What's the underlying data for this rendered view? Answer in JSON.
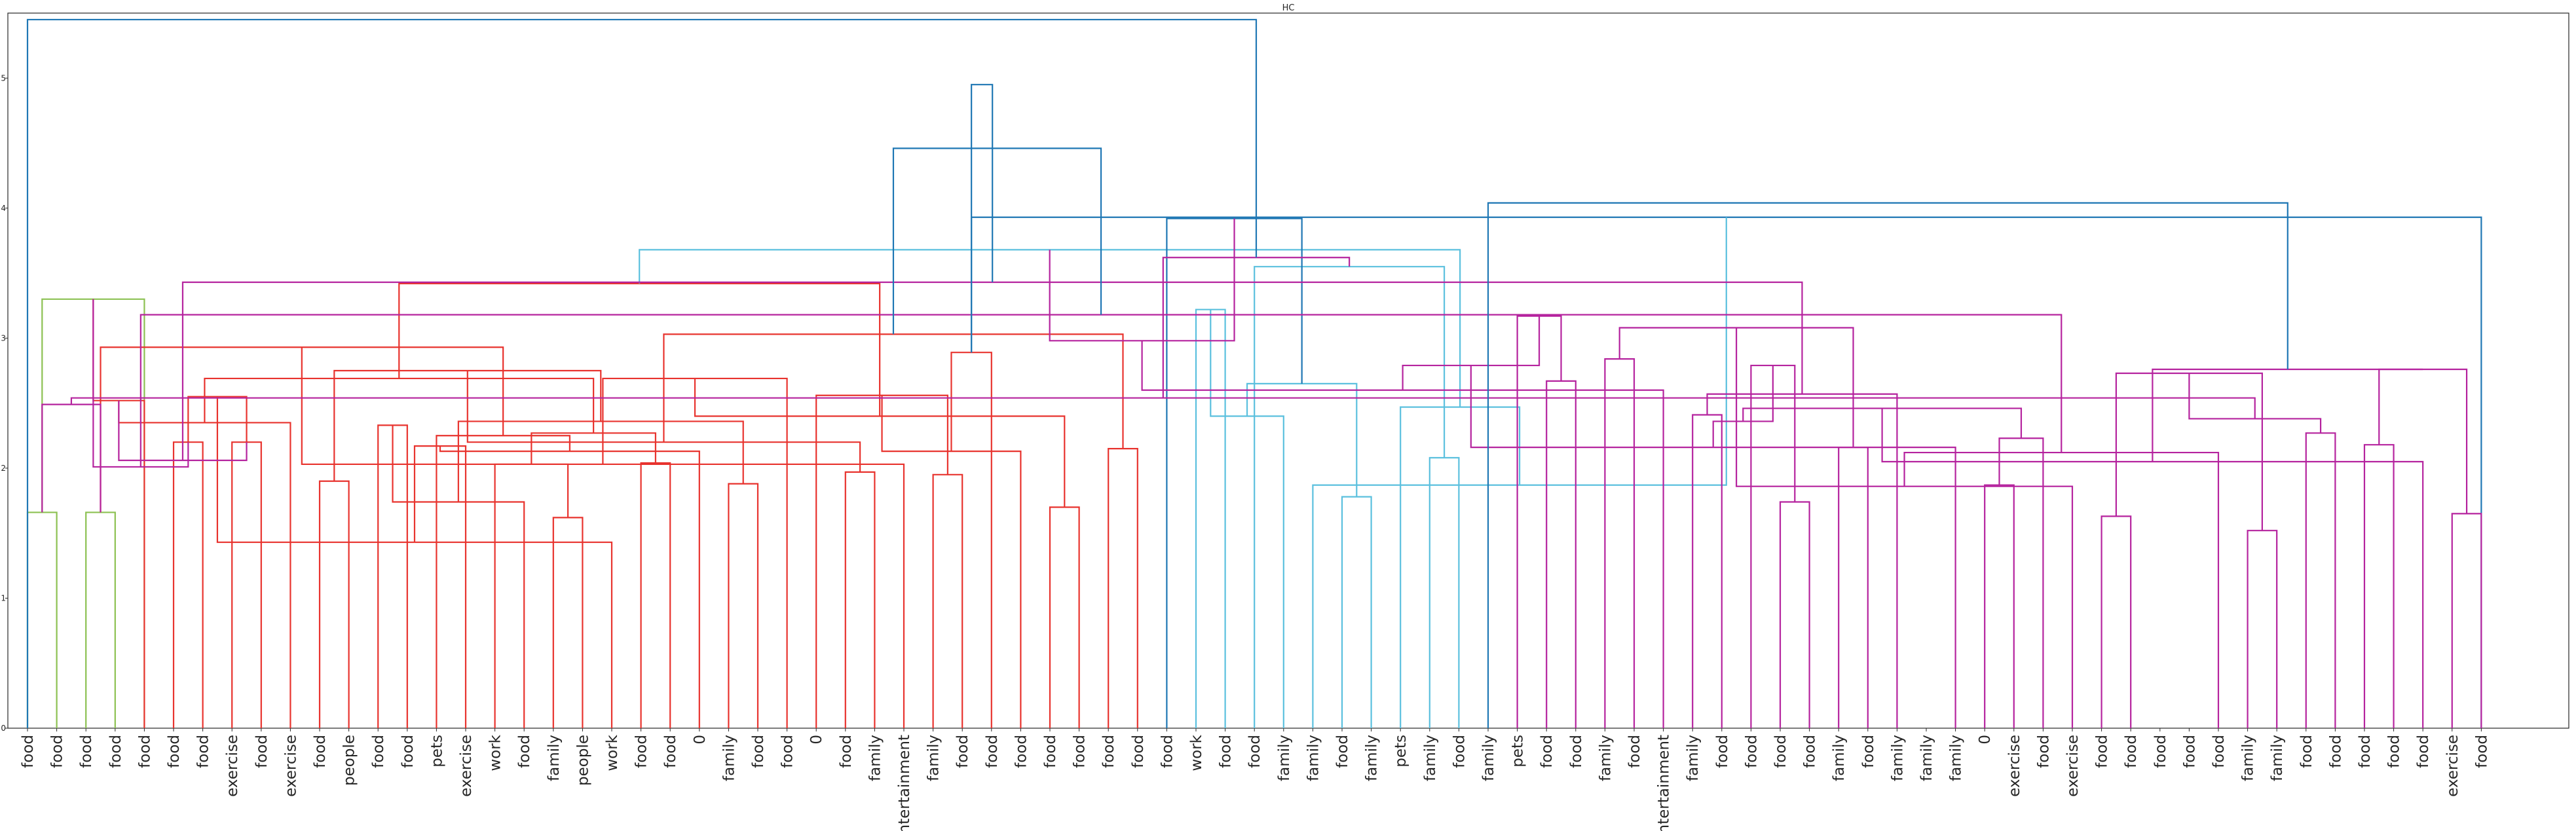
{
  "chart_data": {
    "type": "dendrogram",
    "title": "HC",
    "xlabel": "",
    "ylabel": "",
    "ylim": [
      0,
      5.5
    ],
    "yticks": [
      "0",
      "1",
      "2",
      "3",
      "4",
      "5"
    ],
    "grid": false,
    "leaf_labels": [
      "food",
      "food",
      "food",
      "food",
      "food",
      "food",
      "food",
      "exercise",
      "food",
      "exercise",
      "food",
      "people",
      "food",
      "food",
      "pets",
      "exercise",
      "work",
      "food",
      "family",
      "people",
      "work",
      "food",
      "food",
      "0",
      "family",
      "food",
      "food",
      "0",
      "food",
      "family",
      "entertainment",
      "family",
      "food",
      "food",
      "food",
      "food",
      "food",
      "food",
      "food",
      "food",
      "work",
      "food",
      "food",
      "family",
      "family",
      "food",
      "family",
      "pets",
      "family",
      "food",
      "family",
      "pets",
      "food",
      "food",
      "family",
      "food",
      "entertainment",
      "family",
      "food",
      "food",
      "food",
      "food",
      "family",
      "food",
      "family",
      "family",
      "family",
      "0",
      "exercise",
      "food",
      "exercise",
      "food",
      "food",
      "food",
      "food",
      "food",
      "family",
      "family",
      "food",
      "food",
      "food",
      "food",
      "food",
      "exercise",
      "food"
    ],
    "cluster_colors": {
      "above": "#1f77b4",
      "green": "#8cc152",
      "red": "#e8332e",
      "cyan": "#5bc0de",
      "magenta": "#b5239e"
    },
    "links": [
      [
        0,
        1,
        1.66,
        "green"
      ],
      [
        2,
        3,
        1.66,
        "green"
      ],
      [
        85,
        4,
        3.3,
        "green"
      ],
      [
        5,
        6,
        2.2,
        "red"
      ],
      [
        4,
        87,
        2.52,
        "red"
      ],
      [
        7,
        8,
        2.2,
        "red"
      ],
      [
        10,
        11,
        1.9,
        "red"
      ],
      [
        9,
        89,
        2.35,
        "red"
      ],
      [
        88,
        90,
        2.55,
        "red"
      ],
      [
        12,
        13,
        2.33,
        "red"
      ],
      [
        18,
        19,
        1.62,
        "red"
      ],
      [
        20,
        93,
        1.43,
        "red"
      ],
      [
        17,
        94,
        1.74,
        "red"
      ],
      [
        16,
        95,
        2.03,
        "red"
      ],
      [
        15,
        96,
        2.17,
        "red"
      ],
      [
        21,
        22,
        2.04,
        "red"
      ],
      [
        24,
        25,
        1.88,
        "red"
      ],
      [
        23,
        99,
        2.13,
        "red"
      ],
      [
        98,
        100,
        2.27,
        "red"
      ],
      [
        97,
        101,
        2.36,
        "red"
      ],
      [
        14,
        102,
        2.25,
        "red"
      ],
      [
        92,
        103,
        2.69,
        "red"
      ],
      [
        91,
        104,
        2.75,
        "red"
      ],
      [
        86,
        105,
        2.93,
        "red"
      ],
      [
        28,
        29,
        1.97,
        "red"
      ],
      [
        31,
        32,
        1.95,
        "red"
      ],
      [
        30,
        108,
        2.03,
        "red"
      ],
      [
        107,
        109,
        2.2,
        "red"
      ],
      [
        27,
        110,
        2.56,
        "red"
      ],
      [
        26,
        111,
        2.69,
        "red"
      ],
      [
        35,
        36,
        1.7,
        "red"
      ],
      [
        34,
        113,
        2.13,
        "red"
      ],
      [
        37,
        38,
        2.15,
        "red"
      ],
      [
        114,
        115,
        2.4,
        "red"
      ],
      [
        33,
        116,
        2.89,
        "red"
      ],
      [
        112,
        117,
        3.03,
        "red"
      ],
      [
        106,
        118,
        3.42,
        "red"
      ],
      [
        84,
        119,
        3.93,
        "above"
      ],
      [
        40,
        41,
        3.22,
        "cyan"
      ],
      [
        45,
        46,
        1.78,
        "cyan"
      ],
      [
        44,
        122,
        1.87,
        "cyan"
      ],
      [
        43,
        123,
        2.4,
        "cyan"
      ],
      [
        48,
        49,
        2.08,
        "cyan"
      ],
      [
        47,
        125,
        2.47,
        "cyan"
      ],
      [
        124,
        126,
        2.65,
        "cyan"
      ],
      [
        42,
        127,
        3.55,
        "cyan"
      ],
      [
        121,
        128,
        3.68,
        "cyan"
      ],
      [
        39,
        129,
        3.92,
        "above"
      ],
      [
        52,
        53,
        2.67,
        "magenta"
      ],
      [
        54,
        55,
        2.84,
        "magenta"
      ],
      [
        131,
        132,
        2.98,
        "magenta"
      ],
      [
        51,
        133,
        3.17,
        "magenta"
      ],
      [
        57,
        58,
        2.41,
        "magenta"
      ],
      [
        56,
        135,
        2.6,
        "magenta"
      ],
      [
        60,
        61,
        1.74,
        "magenta"
      ],
      [
        62,
        63,
        2.16,
        "magenta"
      ],
      [
        64,
        137,
        2.57,
        "magenta"
      ],
      [
        136,
        138,
        2.79,
        "magenta"
      ],
      [
        59,
        139,
        2.79,
        "magenta"
      ],
      [
        134,
        140,
        3.08,
        "magenta"
      ],
      [
        67,
        68,
        1.87,
        "magenta"
      ],
      [
        66,
        142,
        2.16,
        "magenta"
      ],
      [
        71,
        72,
        1.63,
        "magenta"
      ],
      [
        70,
        144,
        1.86,
        "magenta"
      ],
      [
        69,
        145,
        2.23,
        "magenta"
      ],
      [
        143,
        146,
        2.36,
        "magenta"
      ],
      [
        76,
        77,
        1.52,
        "magenta"
      ],
      [
        75,
        148,
        2.12,
        "magenta"
      ],
      [
        78,
        79,
        2.27,
        "magenta"
      ],
      [
        149,
        150,
        2.46,
        "magenta"
      ],
      [
        147,
        151,
        2.73,
        "magenta"
      ],
      [
        80,
        81,
        2.18,
        "magenta"
      ],
      [
        83,
        84,
        1.65,
        "magenta"
      ],
      [
        82,
        154,
        2.05,
        "magenta"
      ],
      [
        153,
        155,
        2.38,
        "magenta"
      ],
      [
        85,
        86,
        2.49,
        "magenta"
      ],
      [
        156,
        157,
        2.76,
        "magenta"
      ],
      [
        87,
        88,
        2.01,
        "magenta"
      ],
      [
        89,
        90,
        2.06,
        "magenta"
      ],
      [
        159,
        160,
        2.54,
        "magenta"
      ],
      [
        158,
        161,
        2.76,
        "magenta"
      ],
      [
        152,
        162,
        3.18,
        "magenta"
      ],
      [
        141,
        163,
        3.43,
        "magenta"
      ],
      [
        130,
        164,
        3.62,
        "magenta"
      ],
      [
        50,
        165,
        4.04,
        "above"
      ],
      [
        120,
        166,
        4.46,
        "above"
      ],
      [
        119,
        167,
        4.95,
        "above"
      ],
      [
        0,
        168,
        5.45,
        "above"
      ]
    ]
  }
}
